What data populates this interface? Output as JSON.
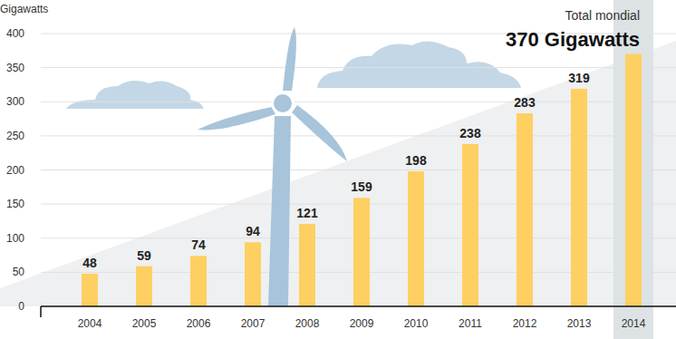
{
  "chart_data": {
    "type": "bar",
    "title": "Total mondial",
    "subtitle": "370 Gigawatts",
    "ylabel": "Gigawatts",
    "categories": [
      "2004",
      "2005",
      "2006",
      "2007",
      "2008",
      "2009",
      "2010",
      "2011",
      "2012",
      "2013",
      "2014"
    ],
    "values": [
      48,
      59,
      74,
      94,
      121,
      159,
      198,
      238,
      283,
      319,
      370
    ],
    "value_labels": [
      "48",
      "59",
      "74",
      "94",
      "121",
      "159",
      "198",
      "238",
      "283",
      "319",
      null
    ],
    "color": "#fed061",
    "ylim": [
      0,
      400
    ],
    "yticks": [
      0,
      50,
      100,
      150,
      200,
      250,
      300,
      350,
      400
    ],
    "grid": true,
    "data_labels": true
  }
}
